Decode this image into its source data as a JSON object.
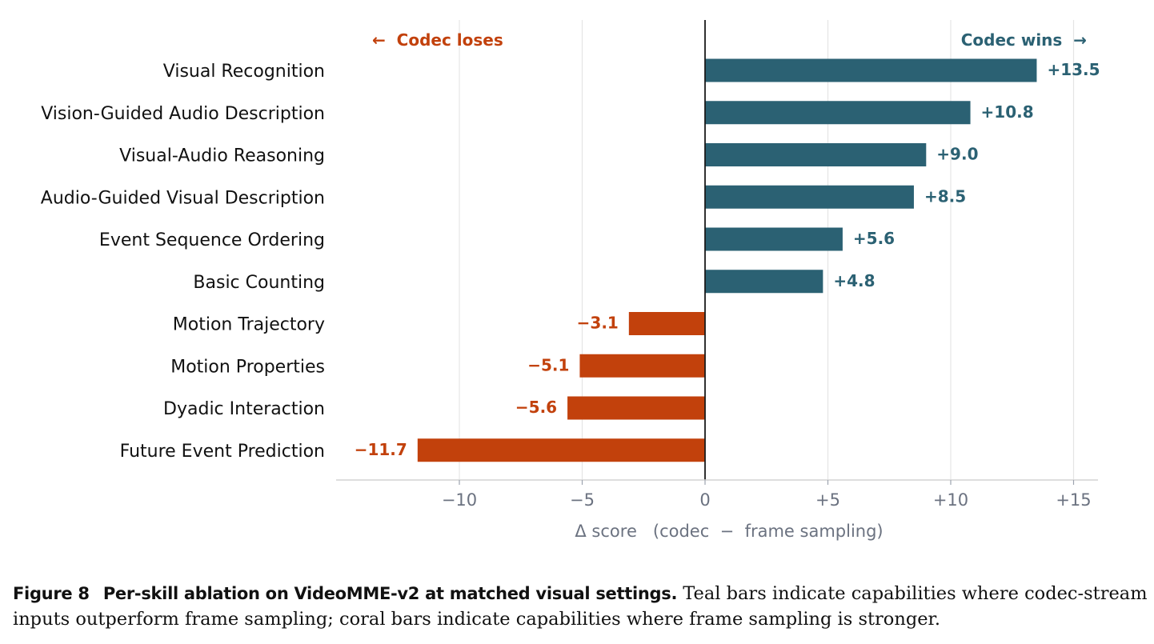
{
  "chart_data": {
    "type": "bar",
    "orientation": "horizontal",
    "categories": [
      "Visual Recognition",
      "Vision-Guided Audio Description",
      "Visual-Audio Reasoning",
      "Audio-Guided Visual Description",
      "Event Sequence Ordering",
      "Basic Counting",
      "Motion Trajectory",
      "Motion Properties",
      "Dyadic Interaction",
      "Future Event Prediction"
    ],
    "values": [
      13.5,
      10.8,
      9.0,
      8.5,
      5.6,
      4.8,
      -3.1,
      -5.1,
      -5.6,
      -11.7
    ],
    "value_labels": [
      "+13.5",
      "+10.8",
      "+9.0",
      "+8.5",
      "+5.6",
      "+4.8",
      "−3.1",
      "−5.1",
      "−5.6",
      "−11.7"
    ],
    "xlim": [
      -15,
      16
    ],
    "xticks": [
      -10,
      -5,
      0,
      5,
      10,
      15
    ],
    "xtick_labels": [
      "−10",
      "−5",
      "0",
      "+5",
      "+10",
      "+15"
    ],
    "xlabel": "Δ score   (codec  −  frame sampling)",
    "ylabel": "",
    "grid": "vertical",
    "colors": {
      "positive": "#2b6173",
      "negative": "#c2410c",
      "zero_line": "#1a1a1a",
      "grid": "#e5e5e5"
    },
    "annotations": {
      "left": "←  Codec loses",
      "right": "Codec wins  →"
    }
  },
  "caption": {
    "figure_number": "Figure 8",
    "title": "Per-skill ablation on VideoMME-v2 at matched visual settings.",
    "text": "Teal bars indicate capabilities where codec-stream inputs outperform frame sampling; coral bars indicate capabilities where frame sampling is stronger."
  }
}
